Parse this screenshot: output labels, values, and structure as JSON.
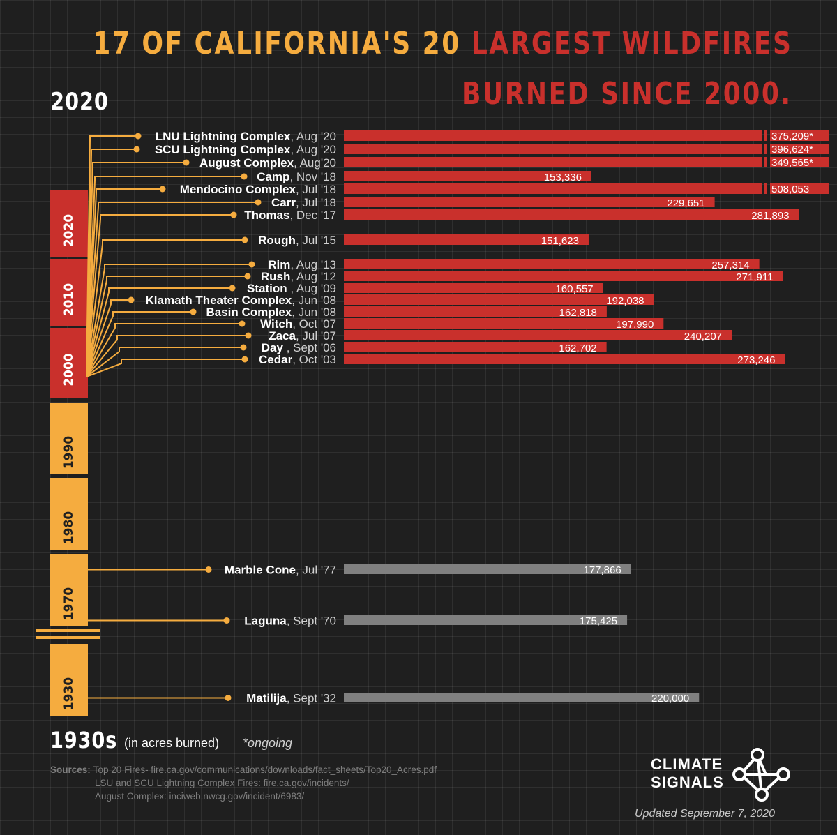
{
  "title": {
    "part1": "17 OF CALIFORNIA'S 20",
    "part2": "LARGEST WILDFIRES",
    "line2": "BURNED SINCE 2000."
  },
  "timeline": {
    "top_label": "2020",
    "bottom_label": "1930s",
    "decades": [
      "2020",
      "2010",
      "2000",
      "1990",
      "1980",
      "1970",
      "1930"
    ]
  },
  "units_label": "(in acres burned)",
  "ongoing_note": "*ongoing",
  "sources": {
    "label": "Sources:",
    "lines": [
      "Top 20 Fires- fire.ca.gov/communications/downloads/fact_sheets/Top20_Acres.pdf",
      "LSU and SCU Lightning Complex Fires:  fire.ca.gov/incidents/",
      "August Complex: inciweb.nwcg.gov/incident/6983/"
    ]
  },
  "brand": {
    "line1": "CLIMATE",
    "line2": "SIGNALS",
    "icon": "network-nodes-icon"
  },
  "updated": "Updated September 7, 2020",
  "colors": {
    "background": "#1f1f1f",
    "recent_bar": "#c9302c",
    "older_bar": "#808080",
    "accent": "#f5ac3f",
    "text": "#ffffff"
  },
  "chart_data": {
    "type": "bar",
    "orientation": "horizontal",
    "unit": "acres burned",
    "categories": [
      {
        "name": "LNU Lightning Complex",
        "date": ", Aug '20",
        "value": 375209,
        "label": "375,209*",
        "era": "recent",
        "ongoing": true,
        "broken": true
      },
      {
        "name": "SCU Lightning Complex",
        "date": ", Aug '20",
        "value": 396624,
        "label": "396,624*",
        "era": "recent",
        "ongoing": true,
        "broken": true
      },
      {
        "name": "August Complex",
        "date": ", Aug'20",
        "value": 349565,
        "label": "349,565*",
        "era": "recent",
        "ongoing": true,
        "broken": true
      },
      {
        "name": "Camp",
        "date": ", Nov '18",
        "value": 153336,
        "label": "153,336",
        "era": "recent"
      },
      {
        "name": "Mendocino Complex",
        "date": ", Jul '18",
        "value": 508053,
        "label": "508,053",
        "era": "recent",
        "broken": true
      },
      {
        "name": "Carr",
        "date": ", Jul '18",
        "value": 229651,
        "label": "229,651",
        "era": "recent"
      },
      {
        "name": "Thomas",
        "date": ", Dec '17",
        "value": 281893,
        "label": "281,893",
        "era": "recent"
      },
      {
        "name": "Rough",
        "date": ", Jul '15",
        "value": 151623,
        "label": "151,623",
        "era": "recent"
      },
      {
        "name": "Rim",
        "date": ", Aug '13",
        "value": 257314,
        "label": "257,314",
        "era": "recent"
      },
      {
        "name": "Rush",
        "date": ", Aug '12",
        "value": 271911,
        "label": "271,911",
        "era": "recent"
      },
      {
        "name": "Station ",
        "date": ", Aug '09",
        "value": 160557,
        "label": "160,557",
        "era": "recent"
      },
      {
        "name": "Klamath Theater Complex",
        "date": ", Jun '08",
        "value": 192038,
        "label": "192,038",
        "era": "recent"
      },
      {
        "name": "Basin Complex",
        "date": ", Jun '08",
        "value": 162818,
        "label": "162,818",
        "era": "recent"
      },
      {
        "name": "Witch",
        "date": ", Oct '07",
        "value": 197990,
        "label": "197,990",
        "era": "recent"
      },
      {
        "name": "Zaca",
        "date": ", Jul '07",
        "value": 240207,
        "label": "240,207",
        "era": "recent"
      },
      {
        "name": "Day ",
        "date": ", Sept '06",
        "value": 162702,
        "label": "162,702",
        "era": "recent"
      },
      {
        "name": "Cedar",
        "date": ", Oct '03",
        "value": 273246,
        "label": "273,246",
        "era": "recent"
      },
      {
        "name": "Marble Cone",
        "date": ", Jul '77",
        "value": 177866,
        "label": "177,866",
        "era": "older"
      },
      {
        "name": "Laguna",
        "date": ", Sept '70",
        "value": 175425,
        "label": "175,425",
        "era": "older"
      },
      {
        "name": "Matilija",
        "date": ", Sept '32",
        "value": 220000,
        "label": "220,000",
        "era": "older"
      }
    ]
  }
}
